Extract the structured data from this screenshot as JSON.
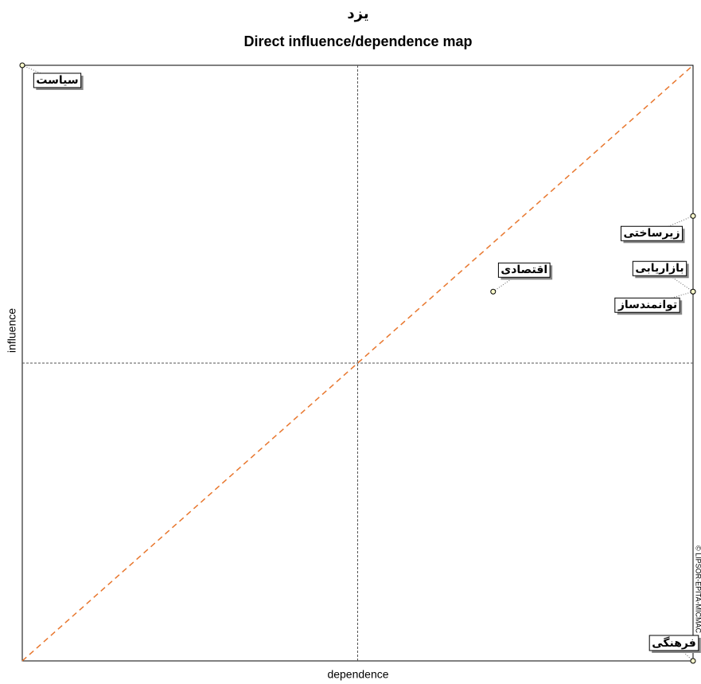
{
  "chart_data": {
    "type": "scatter",
    "title": "یزد",
    "subtitle": "Direct influence/dependence map",
    "x_label": "dependence",
    "y_label": "influence",
    "watermark": "© LIPSOR-EPITA-MICMAC",
    "labels": [
      "سیاست",
      "زیرساختی",
      "بازاریابی",
      "توانمندساز",
      "اقتصادی",
      "فرهنگی"
    ],
    "x": [
      0,
      100,
      100,
      100,
      70.2,
      100
    ],
    "values": [
      100,
      74.7,
      62,
      62,
      62,
      0
    ],
    "xlim": [
      0,
      100
    ],
    "ylim": [
      0,
      100
    ],
    "color": "#000000",
    "diagonal_color": "#e8772e"
  }
}
